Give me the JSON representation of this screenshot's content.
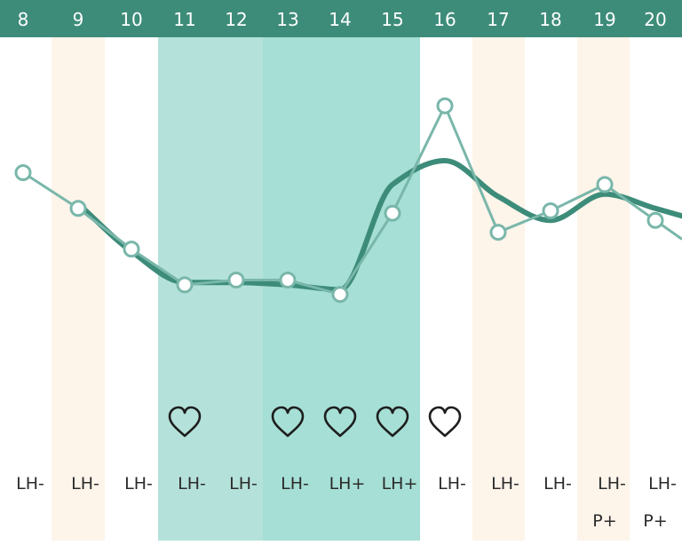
{
  "chart_data": {
    "type": "line",
    "title": "",
    "xlabel": "",
    "ylabel": "",
    "grid": false,
    "legend": "none",
    "x": [
      8,
      9,
      10,
      11,
      12,
      13,
      14,
      15,
      16,
      17,
      18,
      19,
      20
    ],
    "days": [
      "8",
      "9",
      "10",
      "11",
      "12",
      "13",
      "14",
      "15",
      "16",
      "17",
      "18",
      "19",
      "20"
    ],
    "series": [
      {
        "name": "",
        "style": "measured-points",
        "values": [
          36.45,
          36.3,
          36.13,
          35.98,
          36.0,
          36.0,
          35.94,
          36.28,
          36.73,
          36.2,
          36.29,
          36.4,
          36.25
        ]
      },
      {
        "name": "",
        "style": "smoothed-trend",
        "values": [
          null,
          36.32,
          36.12,
          35.99,
          35.99,
          35.98,
          35.96,
          36.4,
          36.5,
          36.35,
          36.25,
          36.36,
          36.3
        ]
      }
    ],
    "ylim": [
      35.5,
      36.95
    ],
    "fertile_window": {
      "from": 11,
      "to": 15,
      "peak_from": 13,
      "peak_to": 15
    },
    "highlighted_days": [
      9,
      17,
      19
    ],
    "intercourse_days": [
      11,
      13,
      14,
      15,
      16
    ],
    "lh_tests": [
      "LH-",
      "LH-",
      "LH-",
      "LH-",
      "LH-",
      "LH-",
      "LH+",
      "LH+",
      "LH-",
      "LH-",
      "LH-",
      "LH-",
      "LH-"
    ],
    "pregnancy_tests": [
      "",
      "",
      "",
      "",
      "",
      "",
      "",
      "",
      "",
      "",
      "",
      "P+",
      "P+"
    ],
    "heart_icon": "heart-outline-icon",
    "colors": {
      "header_bg": "#3d8c7a",
      "header_text": "#ffffff",
      "fertile_light": "#b4e2da",
      "fertile_peak": "#a6dfd5",
      "highlight_day": "#fdf4ea",
      "trend_line": "#3d8c7a",
      "point_line": "#79b7aa",
      "point_fill": "#ffffff",
      "heart": "#1e1e1e",
      "label_text": "#2b2b2b"
    }
  }
}
